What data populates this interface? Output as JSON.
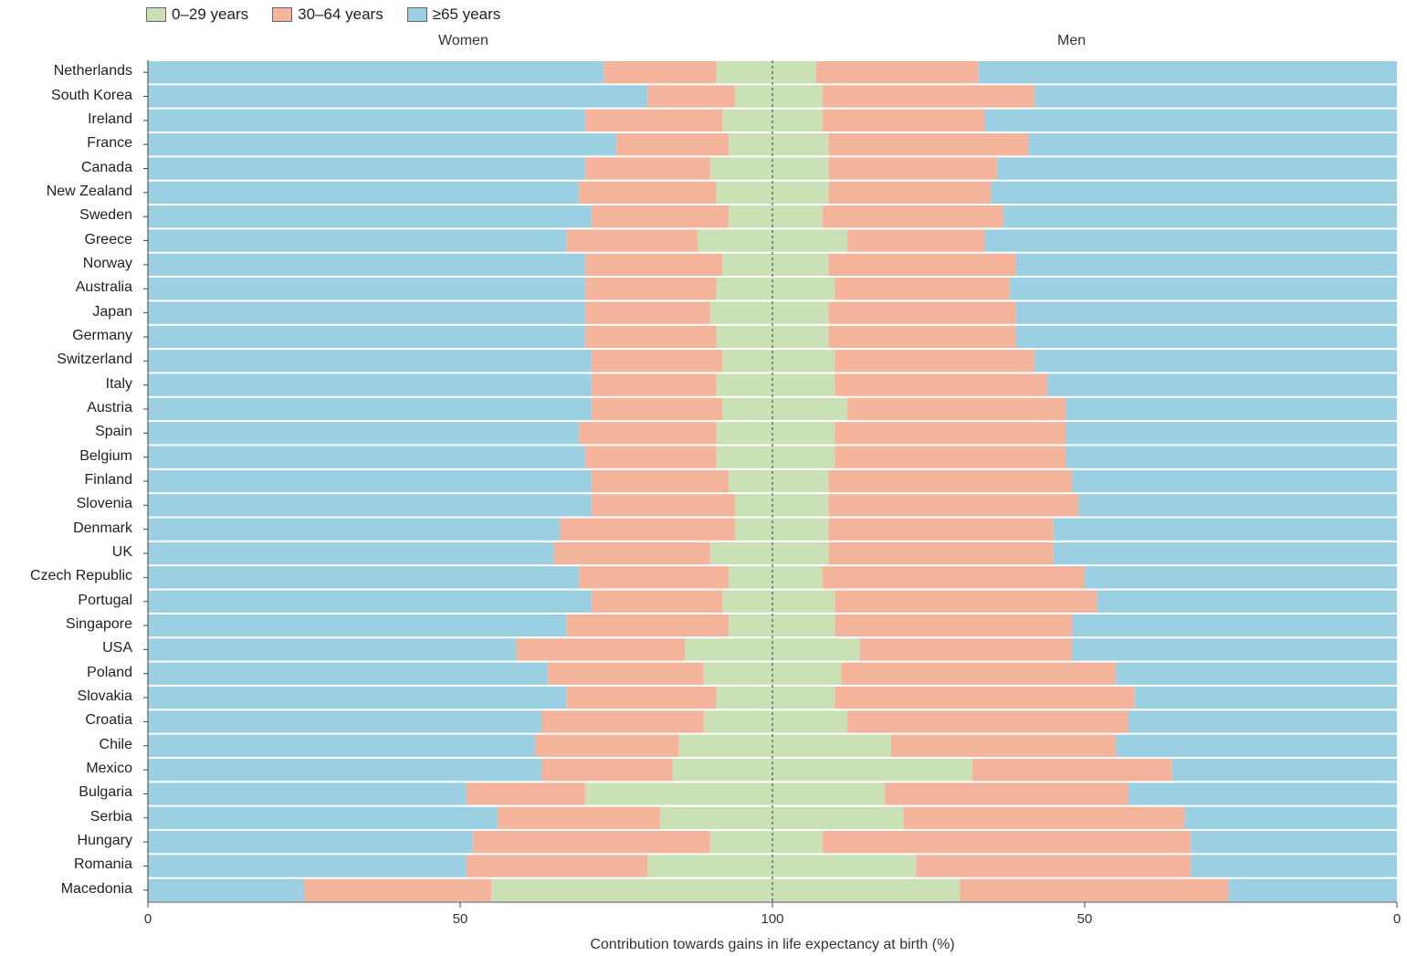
{
  "legend": [
    {
      "label": "0–29 years",
      "color": "#c9e1b4"
    },
    {
      "label": "30–64 years",
      "color": "#f4b39b"
    },
    {
      "label": "≥65 years",
      "color": "#9ad0e2"
    }
  ],
  "panels": {
    "left": "Women",
    "right": "Men"
  },
  "x_axis": {
    "title": "Contribution towards gains in life expectancy at birth (%)",
    "ticks": [
      "0",
      "50",
      "100",
      "50",
      "0"
    ]
  },
  "chart_data": {
    "type": "bar",
    "orientation": "horizontal",
    "stacked": true,
    "layout": "back-to-back",
    "xlabel": "Contribution towards gains in life expectancy at birth (%)",
    "xlim": [
      0,
      100
    ],
    "categories": [
      "Netherlands",
      "South Korea",
      "Ireland",
      "France",
      "Canada",
      "New Zealand",
      "Sweden",
      "Greece",
      "Norway",
      "Australia",
      "Japan",
      "Germany",
      "Switzerland",
      "Italy",
      "Austria",
      "Spain",
      "Belgium",
      "Finland",
      "Slovenia",
      "Denmark",
      "UK",
      "Czech Republic",
      "Portugal",
      "Singapore",
      "USA",
      "Poland",
      "Slovakia",
      "Croatia",
      "Chile",
      "Mexico",
      "Bulgaria",
      "Serbia",
      "Hungary",
      "Romania",
      "Macedonia"
    ],
    "series_colors": {
      "0–29 years": "#c9e1b4",
      "30–64 years": "#f4b39b",
      "≥65 years": "#9ad0e2"
    },
    "women": [
      {
        "name": "0–29 years",
        "values": [
          9,
          6,
          8,
          7,
          10,
          9,
          7,
          12,
          8,
          9,
          10,
          9,
          8,
          9,
          8,
          9,
          9,
          7,
          6,
          6,
          10,
          7,
          8,
          7,
          14,
          11,
          9,
          11,
          15,
          16,
          30,
          18,
          10,
          20,
          45
        ]
      },
      {
        "name": "30–64 years",
        "values": [
          18,
          14,
          22,
          18,
          20,
          22,
          22,
          21,
          22,
          21,
          20,
          21,
          21,
          20,
          21,
          22,
          21,
          22,
          23,
          28,
          25,
          24,
          21,
          26,
          27,
          25,
          24,
          26,
          23,
          21,
          19,
          26,
          38,
          29,
          30
        ]
      },
      {
        "name": "≥65 years",
        "values": [
          73,
          80,
          70,
          75,
          70,
          69,
          71,
          67,
          70,
          70,
          70,
          70,
          71,
          71,
          71,
          69,
          70,
          71,
          71,
          66,
          65,
          69,
          71,
          67,
          59,
          64,
          67,
          63,
          62,
          63,
          51,
          56,
          52,
          51,
          25
        ]
      }
    ],
    "men": [
      {
        "name": "0–29 years",
        "values": [
          7,
          8,
          8,
          9,
          9,
          9,
          8,
          12,
          9,
          10,
          9,
          9,
          10,
          10,
          12,
          10,
          10,
          9,
          9,
          9,
          9,
          8,
          10,
          10,
          14,
          11,
          10,
          12,
          19,
          32,
          18,
          21,
          8,
          23,
          30
        ]
      },
      {
        "name": "30–64 years",
        "values": [
          26,
          34,
          26,
          32,
          27,
          26,
          29,
          22,
          30,
          28,
          30,
          30,
          32,
          34,
          35,
          37,
          37,
          39,
          40,
          36,
          36,
          42,
          42,
          38,
          34,
          44,
          48,
          45,
          36,
          32,
          39,
          45,
          59,
          44,
          43
        ]
      },
      {
        "name": "≥65 years",
        "values": [
          67,
          58,
          66,
          59,
          64,
          65,
          63,
          66,
          61,
          62,
          61,
          61,
          58,
          56,
          53,
          53,
          53,
          52,
          51,
          55,
          55,
          50,
          48,
          52,
          52,
          45,
          42,
          43,
          45,
          36,
          43,
          34,
          33,
          33,
          27
        ]
      }
    ]
  }
}
